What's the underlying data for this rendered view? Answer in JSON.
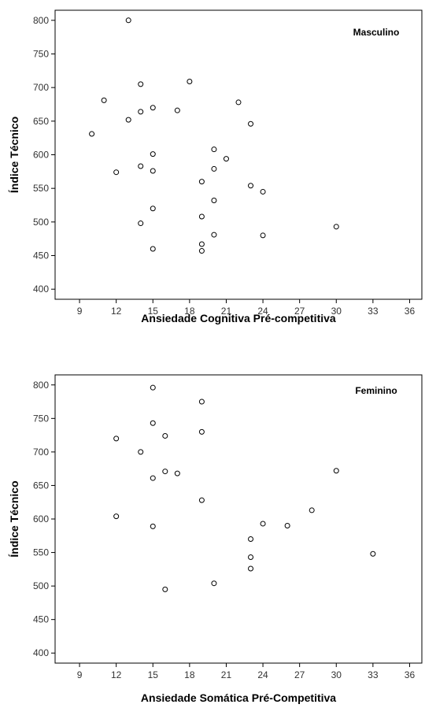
{
  "colors": {
    "background": "#ffffff",
    "axis": "#000000",
    "marker_stroke": "#000000",
    "marker_fill": "#ffffff",
    "text": "#333333"
  },
  "chart_data": [
    {
      "type": "scatter",
      "panel_label": "Masculino",
      "xlabel": "Ansiedade Cognitiva Pré-competitiva",
      "ylabel": "Índice Técnico",
      "xlim": [
        7,
        37
      ],
      "ylim": [
        385,
        815
      ],
      "xticks": [
        9,
        12,
        15,
        18,
        21,
        24,
        27,
        30,
        33,
        36
      ],
      "yticks": [
        400,
        450,
        500,
        550,
        600,
        650,
        700,
        750,
        800
      ],
      "grid": false,
      "marker": "open-circle",
      "points": [
        {
          "x": 13,
          "y": 800
        },
        {
          "x": 18,
          "y": 709
        },
        {
          "x": 14,
          "y": 705
        },
        {
          "x": 11,
          "y": 681
        },
        {
          "x": 22,
          "y": 678
        },
        {
          "x": 15,
          "y": 670
        },
        {
          "x": 17,
          "y": 666
        },
        {
          "x": 14,
          "y": 664
        },
        {
          "x": 13,
          "y": 652
        },
        {
          "x": 23,
          "y": 646
        },
        {
          "x": 10,
          "y": 631
        },
        {
          "x": 20,
          "y": 608
        },
        {
          "x": 15,
          "y": 601
        },
        {
          "x": 21,
          "y": 594
        },
        {
          "x": 14,
          "y": 583
        },
        {
          "x": 20,
          "y": 579
        },
        {
          "x": 15,
          "y": 576
        },
        {
          "x": 12,
          "y": 574
        },
        {
          "x": 19,
          "y": 560
        },
        {
          "x": 23,
          "y": 554
        },
        {
          "x": 24,
          "y": 545
        },
        {
          "x": 20,
          "y": 532
        },
        {
          "x": 15,
          "y": 520
        },
        {
          "x": 19,
          "y": 508
        },
        {
          "x": 14,
          "y": 498
        },
        {
          "x": 30,
          "y": 493
        },
        {
          "x": 20,
          "y": 481
        },
        {
          "x": 24,
          "y": 480
        },
        {
          "x": 19,
          "y": 467
        },
        {
          "x": 15,
          "y": 460
        },
        {
          "x": 19,
          "y": 457
        }
      ]
    },
    {
      "type": "scatter",
      "panel_label": "Feminino",
      "xlabel": "Ansiedade Somática Pré-Competitiva",
      "ylabel": "Índice Técnico",
      "xlim": [
        7,
        37
      ],
      "ylim": [
        385,
        815
      ],
      "xticks": [
        9,
        12,
        15,
        18,
        21,
        24,
        27,
        30,
        33,
        36
      ],
      "yticks": [
        400,
        450,
        500,
        550,
        600,
        650,
        700,
        750,
        800
      ],
      "grid": false,
      "marker": "open-circle",
      "points": [
        {
          "x": 15,
          "y": 796
        },
        {
          "x": 19,
          "y": 775
        },
        {
          "x": 15,
          "y": 743
        },
        {
          "x": 19,
          "y": 730
        },
        {
          "x": 16,
          "y": 724
        },
        {
          "x": 12,
          "y": 720
        },
        {
          "x": 14,
          "y": 700
        },
        {
          "x": 30,
          "y": 672
        },
        {
          "x": 16,
          "y": 671
        },
        {
          "x": 17,
          "y": 668
        },
        {
          "x": 15,
          "y": 661
        },
        {
          "x": 19,
          "y": 628
        },
        {
          "x": 28,
          "y": 613
        },
        {
          "x": 12,
          "y": 604
        },
        {
          "x": 24,
          "y": 593
        },
        {
          "x": 26,
          "y": 590
        },
        {
          "x": 15,
          "y": 589
        },
        {
          "x": 23,
          "y": 570
        },
        {
          "x": 33,
          "y": 548
        },
        {
          "x": 23,
          "y": 543
        },
        {
          "x": 23,
          "y": 526
        },
        {
          "x": 20,
          "y": 504
        },
        {
          "x": 16,
          "y": 495
        }
      ]
    }
  ]
}
